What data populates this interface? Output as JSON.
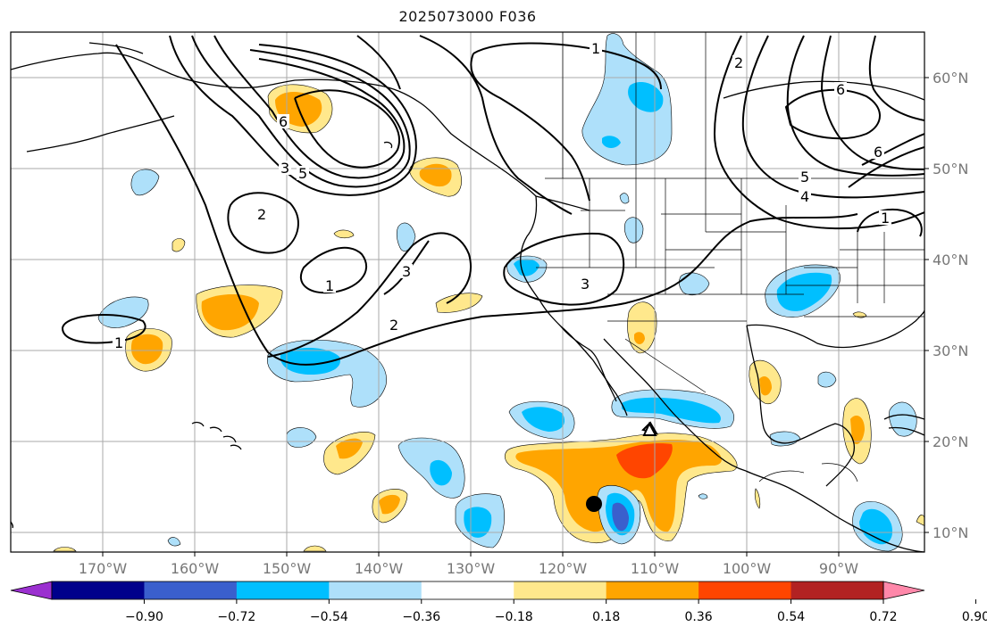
{
  "title": "2025073000 F036",
  "lat_labels": [
    "60°N",
    "50°N",
    "40°N",
    "30°N",
    "20°N",
    "10°N"
  ],
  "lon_labels": [
    "170°W",
    "160°W",
    "150°W",
    "140°W",
    "130°W",
    "120°W",
    "110°W",
    "100°W",
    "90°W"
  ],
  "contour_labels": [
    "1",
    "1",
    "1",
    "1",
    "2",
    "2",
    "2",
    "3",
    "3",
    "3",
    "5",
    "6",
    "6",
    "6",
    "4",
    "5"
  ],
  "colorbar": {
    "ticks": [
      "−0.90",
      "−0.72",
      "−0.54",
      "−0.36",
      "−0.18",
      "0.18",
      "0.36",
      "0.54",
      "0.72",
      "0.90"
    ],
    "colors": [
      "#9b30d0",
      "#00008b",
      "#3a5fcd",
      "#00bfff",
      "#aee0fa",
      "#ffffff",
      "#ffe88c",
      "#ffa500",
      "#ff4500",
      "#b22222",
      "#ff88aa"
    ]
  },
  "markers": {
    "triangle": "storm-position-triangle",
    "dot": "storm-position-dot"
  }
}
